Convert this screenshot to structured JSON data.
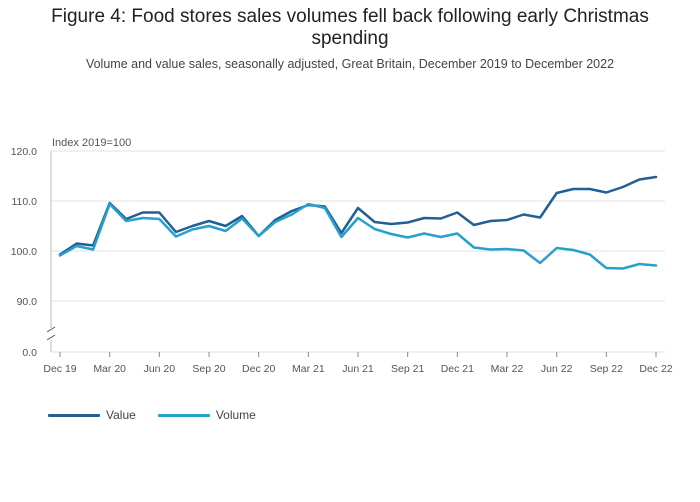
{
  "title_lines": [
    "Figure 4: Food stores sales volumes fell back following early Christmas",
    "spending"
  ],
  "subtitle": "Volume and value sales, seasonally adjusted, Great Britain, December 2019 to December 2022",
  "chart_data": {
    "type": "line",
    "title": "Figure 4: Food stores sales volumes fell back following early Christmas spending",
    "ylabel": "Index 2019=100",
    "ylim": [
      88,
      120
    ],
    "yticks": [
      "120.0",
      "110.0",
      "100.0",
      "90.0",
      "0.0"
    ],
    "ytick_values": [
      120,
      110,
      100,
      90,
      0
    ],
    "axis_break": true,
    "x": [
      "Dec 19",
      "Jan 20",
      "Feb 20",
      "Mar 20",
      "Apr 20",
      "May 20",
      "Jun 20",
      "Jul 20",
      "Aug 20",
      "Sep 20",
      "Oct 20",
      "Nov 20",
      "Dec 20",
      "Jan 21",
      "Feb 21",
      "Mar 21",
      "Apr 21",
      "May 21",
      "Jun 21",
      "Jul 21",
      "Aug 21",
      "Sep 21",
      "Oct 21",
      "Nov 21",
      "Dec 21",
      "Jan 22",
      "Feb 22",
      "Mar 22",
      "Apr 22",
      "May 22",
      "Jun 22",
      "Jul 22",
      "Aug 22",
      "Sep 22",
      "Oct 22",
      "Nov 22",
      "Dec 22"
    ],
    "xtick_labels": [
      "Dec 19",
      "Mar 20",
      "Jun 20",
      "Sep 20",
      "Dec 20",
      "Mar 21",
      "Jun 21",
      "Sep 21",
      "Dec 21",
      "Mar 22",
      "Jun 22",
      "Sep 22",
      "Dec 22"
    ],
    "series": [
      {
        "name": "Value",
        "color": "#206095",
        "values": [
          99.3,
          101.5,
          101.1,
          109.6,
          106.4,
          107.7,
          107.7,
          103.8,
          105.0,
          106.0,
          105.0,
          107.0,
          103.0,
          106.2,
          108.0,
          109.2,
          108.9,
          103.6,
          108.6,
          105.8,
          105.4,
          105.7,
          106.6,
          106.5,
          107.7,
          105.2,
          106.0,
          106.2,
          107.3,
          106.7,
          111.6,
          112.4,
          112.4,
          111.7,
          112.8,
          114.3,
          114.8
        ]
      },
      {
        "name": "Volume",
        "color": "#27a0cc",
        "values": [
          99.1,
          101.0,
          100.3,
          109.4,
          106.0,
          106.6,
          106.4,
          102.9,
          104.3,
          105.0,
          104.0,
          106.5,
          103.0,
          105.8,
          107.3,
          109.4,
          108.6,
          102.8,
          106.6,
          104.4,
          103.4,
          102.7,
          103.5,
          102.8,
          103.5,
          100.7,
          100.3,
          100.4,
          100.1,
          97.6,
          100.6,
          100.2,
          99.3,
          96.6,
          96.5,
          97.4,
          97.1
        ]
      }
    ]
  }
}
